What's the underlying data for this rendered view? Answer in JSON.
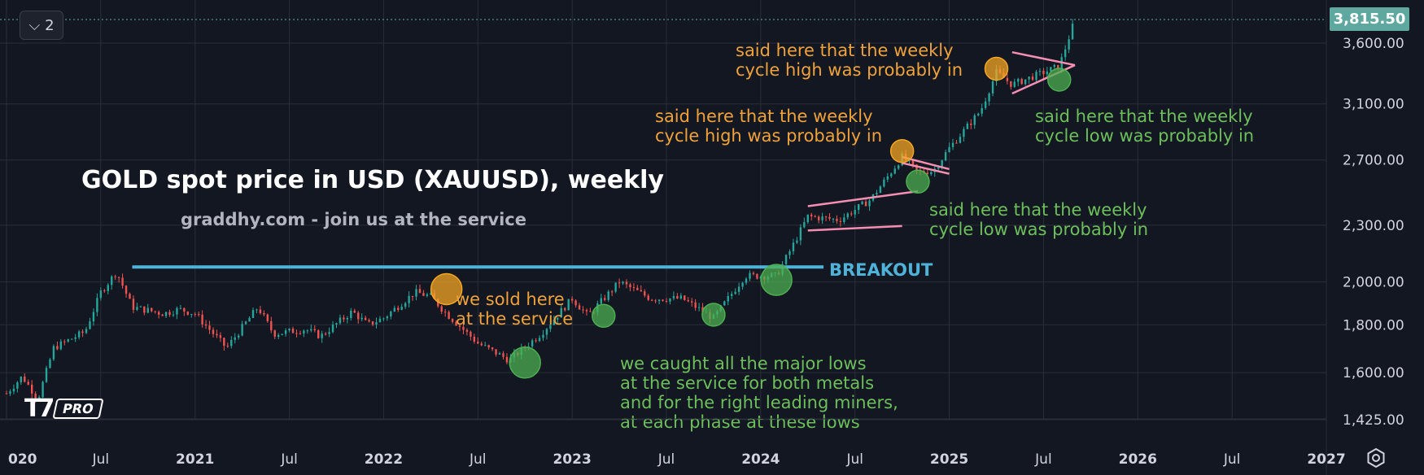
{
  "toolbar": {
    "layers_count": "2"
  },
  "price_tag": "3,815.50",
  "logo": {
    "badge": "PRO"
  },
  "chart_data": {
    "type": "candlestick",
    "title": "GOLD spot price in USD (XAUUSD), weekly",
    "subtitle": "graddhy.com - join us at the service",
    "y_scale": "log",
    "ylim": [
      1380,
      3900
    ],
    "xlim": [
      "2020-01",
      "2027-01"
    ],
    "y_ticks": [
      "3,600.00",
      "3,100.00",
      "2,700.00",
      "2,300.00",
      "2,000.00",
      "1,800.00",
      "1,600.00",
      "1,425.00"
    ],
    "y_tick_values": [
      3600,
      3100,
      2700,
      2300,
      2000,
      1800,
      1600,
      1425
    ],
    "x_ticks": [
      {
        "label": "020",
        "date": "2020-01"
      },
      {
        "label": "Jul",
        "date": "2020-07"
      },
      {
        "label": "2021",
        "date": "2021-01"
      },
      {
        "label": "Jul",
        "date": "2021-07"
      },
      {
        "label": "2022",
        "date": "2022-01"
      },
      {
        "label": "Jul",
        "date": "2022-07"
      },
      {
        "label": "2023",
        "date": "2023-01"
      },
      {
        "label": "Jul",
        "date": "2023-07"
      },
      {
        "label": "2024",
        "date": "2024-01"
      },
      {
        "label": "Jul",
        "date": "2024-07"
      },
      {
        "label": "2025",
        "date": "2025-01"
      },
      {
        "label": "Jul",
        "date": "2025-07"
      },
      {
        "label": "2026",
        "date": "2026-01"
      },
      {
        "label": "Jul",
        "date": "2026-07"
      },
      {
        "label": "2027",
        "date": "2027-01"
      }
    ],
    "series": [
      {
        "name": "",
        "path": [
          [
            "2020-01",
            1520
          ],
          [
            "2020-02",
            1585
          ],
          [
            "2020-03",
            1500
          ],
          [
            "2020-04",
            1700
          ],
          [
            "2020-06",
            1770
          ],
          [
            "2020-07",
            1950
          ],
          [
            "2020-08",
            2050
          ],
          [
            "2020-09",
            1880
          ],
          [
            "2020-11",
            1850
          ],
          [
            "2020-12",
            1870
          ],
          [
            "2021-01",
            1850
          ],
          [
            "2021-03",
            1700
          ],
          [
            "2021-05",
            1880
          ],
          [
            "2021-06",
            1760
          ],
          [
            "2021-08",
            1780
          ],
          [
            "2021-09",
            1750
          ],
          [
            "2021-11",
            1860
          ],
          [
            "2021-12",
            1800
          ],
          [
            "2022-01",
            1830
          ],
          [
            "2022-03",
            1950
          ],
          [
            "2022-04",
            1930
          ],
          [
            "2022-05",
            1850
          ],
          [
            "2022-07",
            1720
          ],
          [
            "2022-09",
            1650
          ],
          [
            "2022-11",
            1760
          ],
          [
            "2023-01",
            1920
          ],
          [
            "2023-02",
            1840
          ],
          [
            "2023-04",
            2000
          ],
          [
            "2023-06",
            1920
          ],
          [
            "2023-08",
            1920
          ],
          [
            "2023-10",
            1830
          ],
          [
            "2023-12",
            2030
          ],
          [
            "2024-02",
            2030
          ],
          [
            "2024-03",
            2180
          ],
          [
            "2024-04",
            2350
          ],
          [
            "2024-06",
            2330
          ],
          [
            "2024-08",
            2450
          ],
          [
            "2024-10",
            2720
          ],
          [
            "2024-11",
            2620
          ],
          [
            "2024-12",
            2630
          ],
          [
            "2025-01",
            2780
          ],
          [
            "2025-03",
            3050
          ],
          [
            "2025-04",
            3350
          ],
          [
            "2025-05",
            3250
          ],
          [
            "2025-07",
            3350
          ],
          [
            "2025-08",
            3400
          ],
          [
            "2025-09",
            3815
          ]
        ]
      }
    ],
    "resistance_level": 2075,
    "breakout_label": "BREAKOUT",
    "annotations": [
      {
        "text": "we sold here\nat the service",
        "color": "#f0a23a"
      },
      {
        "text": "we caught all the major lows\nat the service for both metals\nand for the right leading miners,\nat each phase at these lows",
        "color": "#6cbf5a"
      },
      {
        "text": "said here that the weekly\ncycle high was probably in",
        "color": "#f0a23a"
      },
      {
        "text": "said here that the weekly\ncycle high was probably in",
        "color": "#f0a23a"
      },
      {
        "text": "said here that the weekly\ncycle low was probably in",
        "color": "#6cbf5a"
      },
      {
        "text": "said here that the weekly\ncycle low was probably in",
        "color": "#6cbf5a"
      }
    ],
    "markers": [
      {
        "date": "2022-05",
        "price": 1965,
        "kind": "high",
        "color": "#f5a623"
      },
      {
        "date": "2022-10",
        "price": 1640,
        "kind": "low",
        "color": "#4caf50"
      },
      {
        "date": "2023-03",
        "price": 1840,
        "kind": "low",
        "color": "#4caf50"
      },
      {
        "date": "2023-10",
        "price": 1845,
        "kind": "low",
        "color": "#4caf50"
      },
      {
        "date": "2024-02",
        "price": 2010,
        "kind": "low",
        "color": "#4caf50"
      },
      {
        "date": "2024-10",
        "price": 2760,
        "kind": "high",
        "color": "#f5a623"
      },
      {
        "date": "2024-11",
        "price": 2560,
        "kind": "low",
        "color": "#4caf50"
      },
      {
        "date": "2025-04",
        "price": 3380,
        "kind": "high",
        "color": "#f5a623"
      },
      {
        "date": "2025-08",
        "price": 3290,
        "kind": "low",
        "color": "#4caf50"
      }
    ],
    "colors": {
      "background": "#131722",
      "up": "#26a69a",
      "down": "#ef5350",
      "resistance": "#4fb3d9",
      "pattern": "#f48fb1",
      "grid": "#2a2e39"
    }
  }
}
